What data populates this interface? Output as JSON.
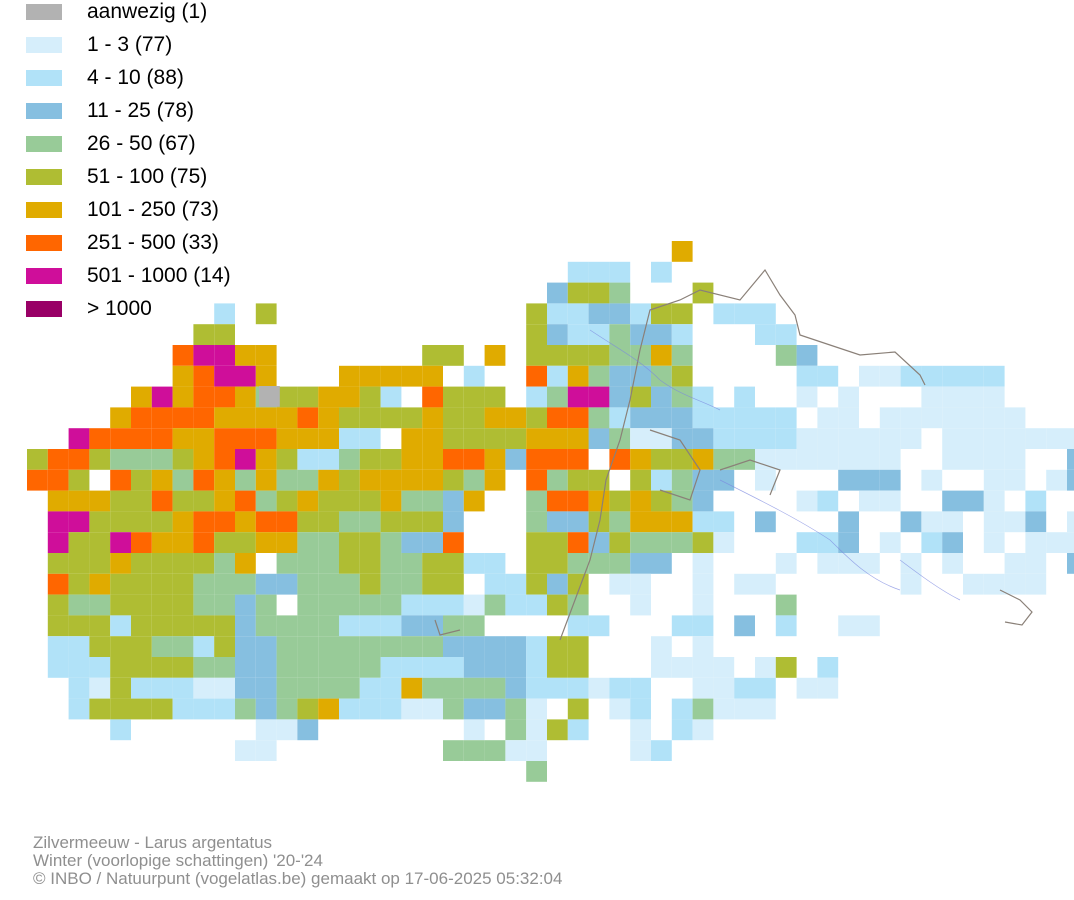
{
  "legend": {
    "items": [
      {
        "label": "aanwezig (1)",
        "color": "#b2b2b2"
      },
      {
        "label": "1 - 3 (77)",
        "color": "#d6eefb"
      },
      {
        "label": "4 - 10 (88)",
        "color": "#b1e2f8"
      },
      {
        "label": "11 - 25 (78)",
        "color": "#86bfe0"
      },
      {
        "label": "26 - 50 (67)",
        "color": "#98cb98"
      },
      {
        "label": "51 - 100 (75)",
        "color": "#afbd33"
      },
      {
        "label": "101 - 250 (73)",
        "color": "#e0ab00"
      },
      {
        "label": "251 - 500 (33)",
        "color": "#ff6600"
      },
      {
        "label": "501 - 1000 (14)",
        "color": "#cf0e9a"
      },
      {
        "label": "> 1000",
        "color": "#990066"
      }
    ]
  },
  "credits": {
    "species": "Zilvermeeuw - Larus argentatus",
    "period": "Winter (voorlopige schattingen) '20-'24",
    "copyright": "© INBO / Natuurpunt (vogelatlas.be) gemaakt op 17-06-2025 05:32:04"
  }
}
